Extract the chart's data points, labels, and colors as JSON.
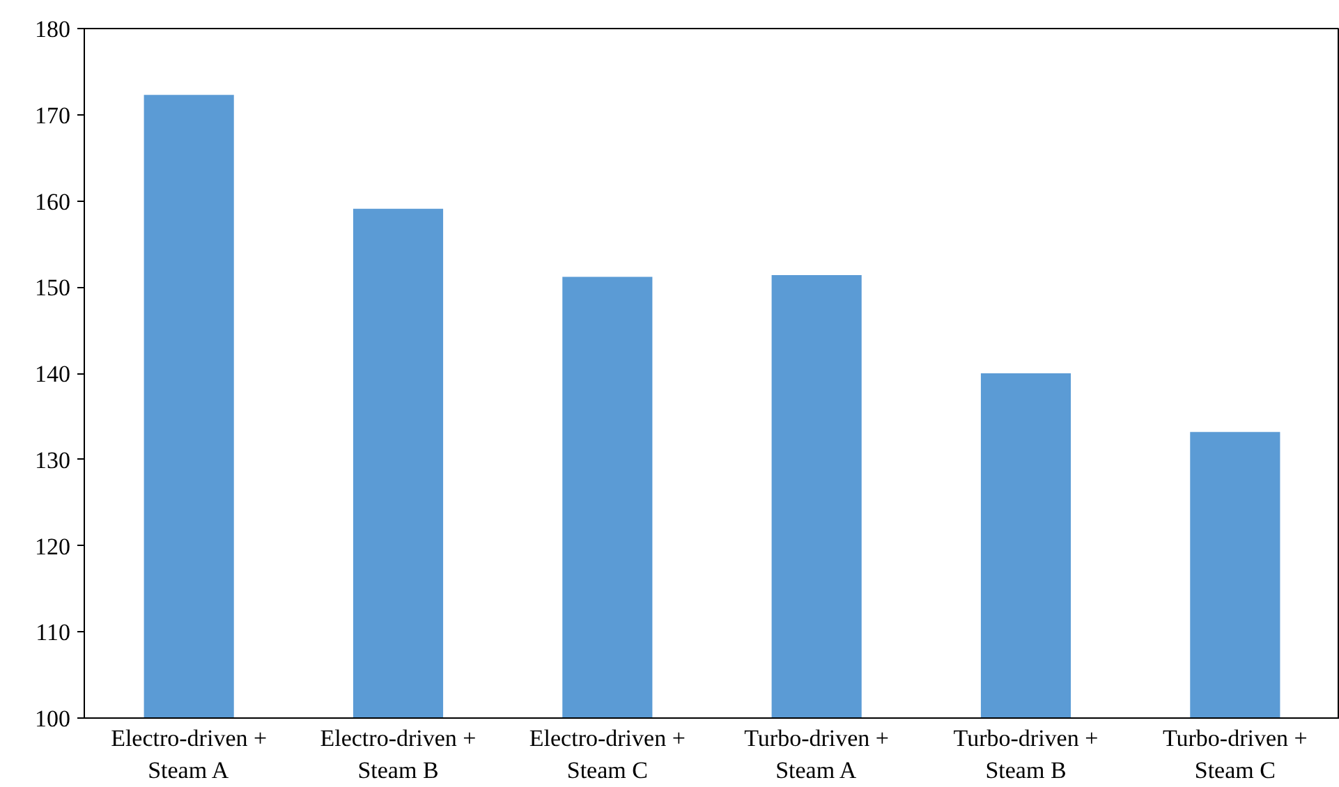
{
  "chart_data": {
    "type": "bar",
    "categories": [
      "Electro-driven +\nSteam A",
      "Electro-driven +\nSteam B",
      "Electro-driven +\nSteam C",
      "Turbo-driven +\nSteam A",
      "Turbo-driven +\nSteam B",
      "Turbo-driven +\nSteam C"
    ],
    "values": [
      172.3,
      159.1,
      151.2,
      151.4,
      140.0,
      133.2
    ],
    "color": "#5b9bd5",
    "ylim": [
      100,
      180
    ],
    "yticks": [
      100,
      110,
      120,
      130,
      140,
      150,
      160,
      170,
      180
    ],
    "grid": false
  }
}
